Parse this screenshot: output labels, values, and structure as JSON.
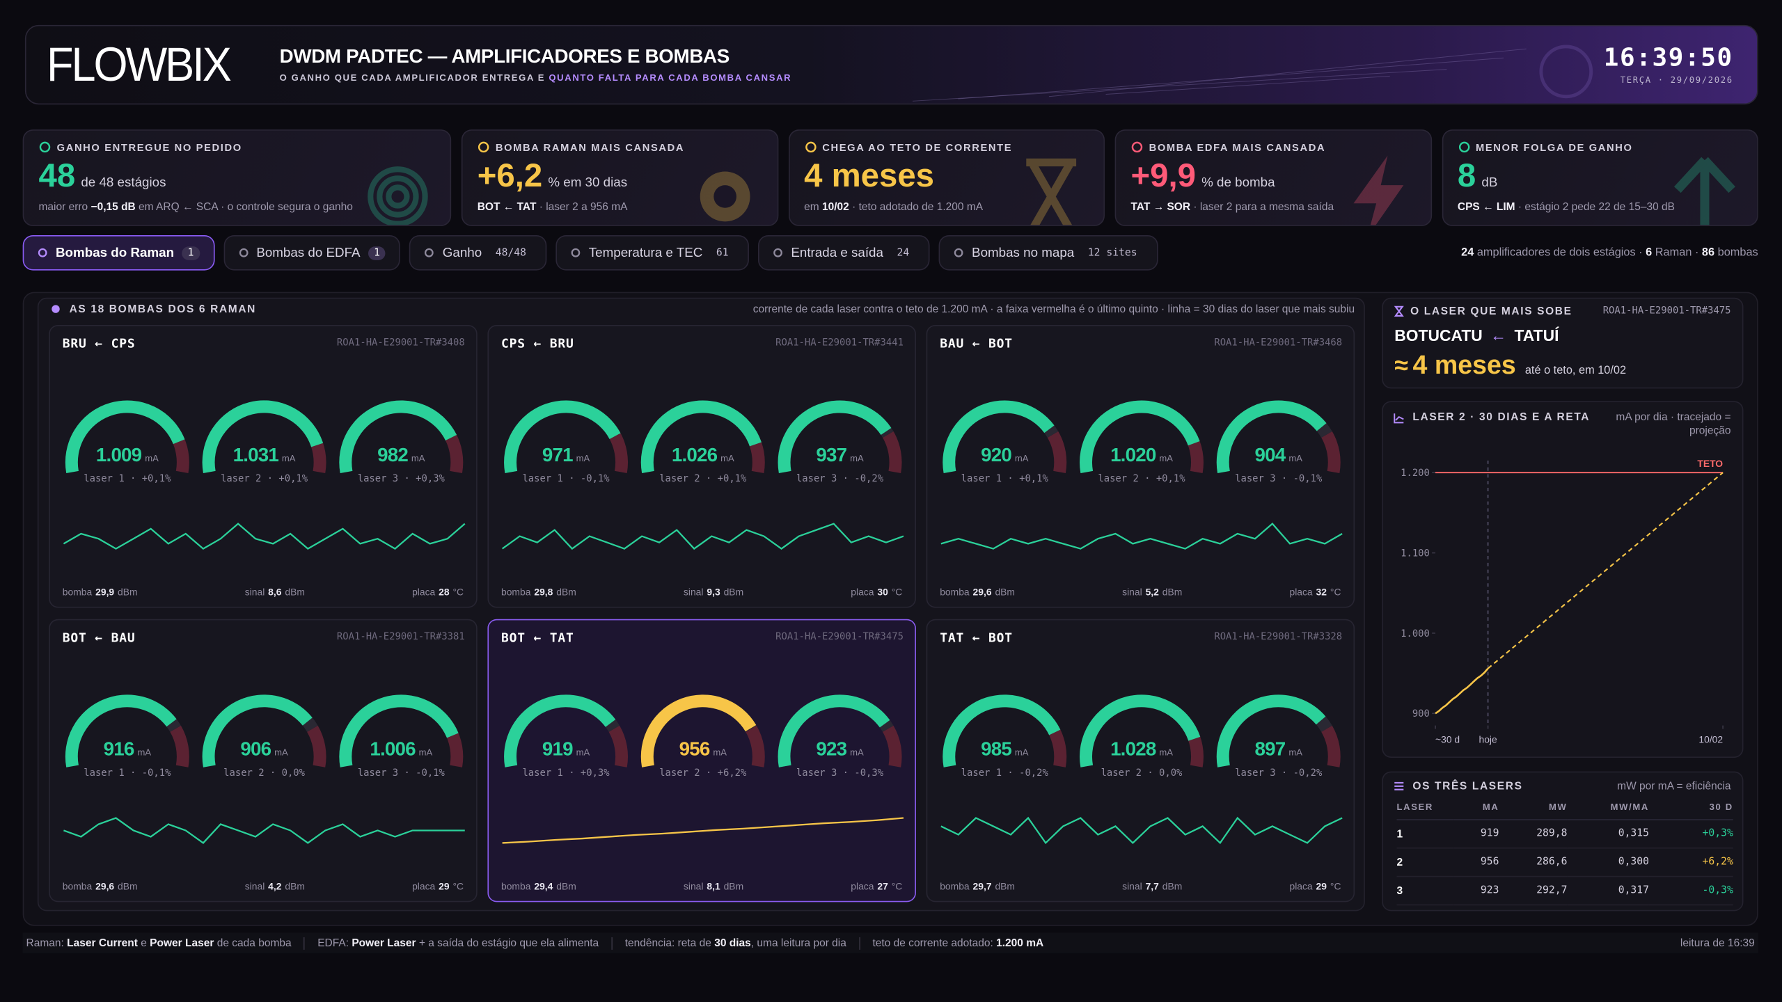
{
  "header": {
    "logo": "FLOWBIX",
    "title": "DWDM PADTEC — AMPLIFICADORES E BOMBAS",
    "subtitle": [
      {
        "t": "O GANHO QUE CADA AMPLIFICADOR ENTREGA E "
      },
      {
        "h": "QUANTO FALTA PARA CADA BOMBA CANSAR"
      }
    ],
    "clock": "16:39:50",
    "date": "TERÇA · 29/09/2026"
  },
  "kpis": [
    {
      "label": "GANHO ENTREGUE NO PEDIDO",
      "value": "48",
      "unit": "de 48 estágios",
      "color": "#2bd19a",
      "note": [
        {
          "t": "maior erro "
        },
        {
          "b": "−0,15 dB"
        },
        {
          "t": " em ARQ ← SCA · o controle segura o ganho"
        }
      ]
    },
    {
      "label": "BOMBA RAMAN MAIS CANSADA",
      "value": "+6,2",
      "unit": "% em 30 dias",
      "color": "#f7c548",
      "note": [
        {
          "b": "BOT ← TAT"
        },
        {
          "t": " · laser 2 a 956 mA"
        }
      ]
    },
    {
      "label": "CHEGA AO TETO DE CORRENTE",
      "value": "4 meses",
      "unit": "",
      "color": "#f7c548",
      "note": [
        {
          "t": "em "
        },
        {
          "b": "10/02"
        },
        {
          "t": " · teto adotado de 1.200 mA"
        }
      ]
    },
    {
      "label": "BOMBA EDFA MAIS CANSADA",
      "value": "+9,9",
      "unit": "% de bomba",
      "color": "#ff5a78",
      "note": [
        {
          "b": "TAT → SOR"
        },
        {
          "t": " · laser 2 para a mesma saída"
        }
      ]
    },
    {
      "label": "MENOR FOLGA DE GANHO",
      "value": "8",
      "unit": "dB",
      "color": "#2bd19a",
      "note": [
        {
          "b": "CPS ← LIM"
        },
        {
          "t": " · estágio 2 pede 22 de 15–30 dB"
        }
      ]
    }
  ],
  "tabs": [
    {
      "label": "Bombas do Raman",
      "count": "1",
      "active": true
    },
    {
      "label": "Bombas do EDFA",
      "count": "1",
      "active": false
    },
    {
      "label": "Ganho",
      "count": "48/48",
      "active": false
    },
    {
      "label": "Temperatura e TEC",
      "count": "61",
      "active": false
    },
    {
      "label": "Entrada e saída",
      "count": "24",
      "active": false
    },
    {
      "label": "Bombas no mapa",
      "count": "12 sites",
      "active": false
    }
  ],
  "summary": [
    {
      "b": "24"
    },
    {
      "t": " amplificadores de dois estágios · "
    },
    {
      "b": "6"
    },
    {
      "t": " Raman · "
    },
    {
      "b": "86"
    },
    {
      "t": " bombas"
    }
  ],
  "pumps": {
    "title": "AS 18 BOMBAS DOS 6 RAMAN",
    "caption": "corrente de cada laser contra o teto de 1.200 mA · a faixa vermelha é o último quinto · linha = 30 dias do laser que mais subiu",
    "unit": "mA",
    "gauge_lim": [
      0,
      1200
    ],
    "panels": [
      {
        "title": "BRU ← CPS",
        "id": "ROA1-HA-E29001-TR#3408",
        "selected": false,
        "values": [
          1009,
          1031,
          982
        ],
        "value_labels": [
          "1.009",
          "1.031",
          "982"
        ],
        "labels": [
          "laser 1 · +0,1%",
          "laser 2 · +0,1%",
          "laser 3 · +0,3%"
        ],
        "colors": [
          "#2bd19a",
          "#2bd19a",
          "#2bd19a"
        ],
        "trend_color": "#2bd19a",
        "trend": [
          1029,
          1031,
          1030,
          1028,
          1030,
          1032,
          1029,
          1031,
          1028,
          1030,
          1033,
          1030,
          1029,
          1031,
          1028,
          1030,
          1032,
          1029,
          1030,
          1028,
          1031,
          1029,
          1030,
          1033
        ],
        "footer": [
          {
            "name": "bomba",
            "value": "29,9",
            "unit": "dBm"
          },
          {
            "name": "sinal",
            "value": "8,6",
            "unit": "dBm"
          },
          {
            "name": "placa",
            "value": "28",
            "unit": "°C"
          }
        ]
      },
      {
        "title": "CPS ← BRU",
        "id": "ROA1-HA-E29001-TR#3441",
        "selected": false,
        "values": [
          971,
          1026,
          937
        ],
        "value_labels": [
          "971",
          "1.026",
          "937"
        ],
        "labels": [
          "laser 1 · -0,1%",
          "laser 2 · +0,1%",
          "laser 3 · -0,2%"
        ],
        "colors": [
          "#2bd19a",
          "#2bd19a",
          "#2bd19a"
        ],
        "trend_color": "#2bd19a",
        "trend": [
          1024,
          1026,
          1025,
          1027,
          1024,
          1026,
          1025,
          1024,
          1026,
          1025,
          1027,
          1024,
          1026,
          1025,
          1027,
          1026,
          1024,
          1026,
          1027,
          1028,
          1025,
          1026,
          1025,
          1026
        ],
        "footer": [
          {
            "name": "bomba",
            "value": "29,8",
            "unit": "dBm"
          },
          {
            "name": "sinal",
            "value": "9,3",
            "unit": "dBm"
          },
          {
            "name": "placa",
            "value": "30",
            "unit": "°C"
          }
        ]
      },
      {
        "title": "BAU ← BOT",
        "id": "ROA1-HA-E29001-TR#3468",
        "selected": false,
        "values": [
          920,
          1020,
          904
        ],
        "value_labels": [
          "920",
          "1.020",
          "904"
        ],
        "labels": [
          "laser 1 · +0,1%",
          "laser 2 · +0,1%",
          "laser 3 · -0,1%"
        ],
        "colors": [
          "#2bd19a",
          "#2bd19a",
          "#2bd19a"
        ],
        "trend_color": "#2bd19a",
        "trend": [
          1019,
          1020,
          1019,
          1018,
          1020,
          1019,
          1020,
          1019,
          1018,
          1020,
          1021,
          1019,
          1020,
          1019,
          1018,
          1020,
          1019,
          1021,
          1020,
          1023,
          1019,
          1020,
          1019,
          1021
        ],
        "footer": [
          {
            "name": "bomba",
            "value": "29,6",
            "unit": "dBm"
          },
          {
            "name": "sinal",
            "value": "5,2",
            "unit": "dBm"
          },
          {
            "name": "placa",
            "value": "32",
            "unit": "°C"
          }
        ]
      },
      {
        "title": "BOT ← BAU",
        "id": "ROA1-HA-E29001-TR#3381",
        "selected": false,
        "values": [
          916,
          906,
          1006
        ],
        "value_labels": [
          "916",
          "906",
          "1.006"
        ],
        "labels": [
          "laser 1 · -0,1%",
          "laser 2 · 0,0%",
          "laser 3 · -0,1%"
        ],
        "colors": [
          "#2bd19a",
          "#2bd19a",
          "#2bd19a"
        ],
        "trend_color": "#2bd19a",
        "trend": [
          906,
          905,
          907,
          908,
          906,
          905,
          907,
          906,
          904,
          907,
          906,
          905,
          907,
          906,
          904,
          906,
          907,
          905,
          906,
          905,
          906,
          906,
          906,
          906
        ],
        "footer": [
          {
            "name": "bomba",
            "value": "29,6",
            "unit": "dBm"
          },
          {
            "name": "sinal",
            "value": "4,2",
            "unit": "dBm"
          },
          {
            "name": "placa",
            "value": "29",
            "unit": "°C"
          }
        ]
      },
      {
        "title": "BOT ← TAT",
        "id": "ROA1-HA-E29001-TR#3475",
        "selected": true,
        "values": [
          919,
          956,
          923
        ],
        "value_labels": [
          "919",
          "956",
          "923"
        ],
        "labels": [
          "laser 1 · +0,3%",
          "laser 2 · +6,2%",
          "laser 3 · -0,3%"
        ],
        "colors": [
          "#2bd19a",
          "#f7c548",
          "#2bd19a"
        ],
        "trend_color": "#f7c548",
        "trend": [
          900,
          903,
          907,
          910,
          914,
          918,
          921,
          925,
          929,
          932,
          936,
          940,
          944,
          947,
          951,
          956
        ],
        "footer": [
          {
            "name": "bomba",
            "value": "29,4",
            "unit": "dBm"
          },
          {
            "name": "sinal",
            "value": "8,1",
            "unit": "dBm"
          },
          {
            "name": "placa",
            "value": "27",
            "unit": "°C"
          }
        ]
      },
      {
        "title": "TAT ← BOT",
        "id": "ROA1-HA-E29001-TR#3328",
        "selected": false,
        "values": [
          985,
          1028,
          897
        ],
        "value_labels": [
          "985",
          "1.028",
          "897"
        ],
        "labels": [
          "laser 1 · -0,2%",
          "laser 2 · 0,0%",
          "laser 3 · -0,2%"
        ],
        "colors": [
          "#2bd19a",
          "#2bd19a",
          "#2bd19a"
        ],
        "trend_color": "#2bd19a",
        "trend": [
          1028,
          1027,
          1029,
          1028,
          1027,
          1029,
          1026,
          1028,
          1029,
          1027,
          1028,
          1026,
          1028,
          1029,
          1027,
          1028,
          1026,
          1029,
          1027,
          1028,
          1027,
          1026,
          1028,
          1029
        ],
        "footer": [
          {
            "name": "bomba",
            "value": "29,7",
            "unit": "dBm"
          },
          {
            "name": "sinal",
            "value": "7,7",
            "unit": "dBm"
          },
          {
            "name": "placa",
            "value": "29",
            "unit": "°C"
          }
        ]
      }
    ]
  },
  "rising": {
    "title": "O LASER QUE MAIS SOBE",
    "id": "ROA1-HA-E29001-TR#3475",
    "from": "BOTUCATU",
    "arrow": "←",
    "to": "TATUÍ",
    "approx": "≈",
    "value": "4 meses",
    "note": "até o teto, em 10/02"
  },
  "chart_data": {
    "type": "line",
    "title": "LASER 2 · 30 DIAS E A RETA",
    "subtitle": "mA por dia · tracejado = projeção",
    "series": [
      {
        "color": "#f7c548",
        "dashed": false,
        "x": [
          -30,
          -28,
          -26,
          -24,
          -22,
          -20,
          -18,
          -16,
          -14,
          -12,
          -10,
          -8,
          -6,
          -4,
          -2,
          0
        ],
        "values": [
          900,
          903,
          907,
          910,
          914,
          918,
          921,
          925,
          929,
          932,
          936,
          940,
          944,
          947,
          951,
          956
        ]
      },
      {
        "color": "#f7c548",
        "dashed": true,
        "x": [
          0,
          134
        ],
        "values": [
          956,
          1200
        ]
      }
    ],
    "ceiling": {
      "value": 1200,
      "label": "TETO",
      "color": "#ff6b6b"
    },
    "xlim": [
      -30,
      134
    ],
    "xticks": [
      {
        "value": -30,
        "label": "~30 d"
      },
      {
        "value": 0,
        "label": "hoje"
      },
      {
        "value": 134,
        "label": "10/02"
      }
    ],
    "ylim": [
      885,
      1215
    ],
    "yticks": [
      900,
      {
        "value": 1000,
        "label": "1.000"
      },
      {
        "value": 1100,
        "label": "1.100"
      },
      {
        "value": 1200,
        "label": "1.200"
      }
    ],
    "grid": false
  },
  "lasers_table": {
    "title": "OS TRÊS LASERS",
    "caption": "mW por mA = eficiência",
    "columns": [
      "LASER",
      "MA",
      "MW",
      "MW/MA",
      "30 D"
    ],
    "rows": [
      [
        "1",
        "919",
        "289,8",
        "0,315",
        "+0,3%"
      ],
      [
        "2",
        "956",
        "286,6",
        "0,300",
        "+6,2%"
      ],
      [
        "3",
        "923",
        "292,7",
        "0,317",
        "-0,3%"
      ]
    ],
    "trend_colors": [
      "#2bd19a",
      "#f7c548",
      "#2bd19a"
    ]
  },
  "footer": {
    "notes": [
      [
        {
          "t": "Raman: "
        },
        {
          "b": "Laser Current"
        },
        {
          "t": " e "
        },
        {
          "b": "Power Laser"
        },
        {
          "t": " de cada bomba"
        }
      ],
      [
        {
          "t": "EDFA: "
        },
        {
          "b": "Power Laser"
        },
        {
          "t": " + a saída do estágio que ela alimenta"
        }
      ],
      [
        {
          "t": "tendência: reta de "
        },
        {
          "b": "30 dias"
        },
        {
          "t": ", uma leitura por dia"
        }
      ],
      [
        {
          "t": "teto de corrente adotado: "
        },
        {
          "b": "1.200 mA"
        }
      ]
    ],
    "reading": "leitura de 16:39"
  }
}
